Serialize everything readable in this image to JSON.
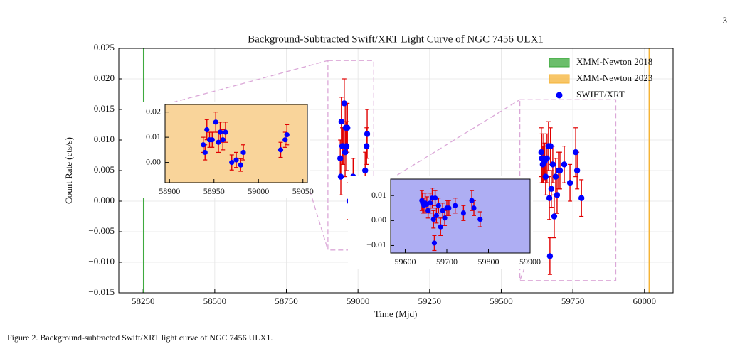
{
  "page_number": "3",
  "caption": "Figure 2. Background-subtracted Swift/XRT light curve of NGC 7456 ULX1.",
  "chart_data": {
    "type": "scatter",
    "title": "Background-Subtracted Swift/XRT Light Curve of NGC 7456 ULX1",
    "x_label": "Time (Mjd)",
    "y_label": "Count Rate (cts/s)",
    "xlim": [
      58165,
      60100
    ],
    "ylim": [
      -0.015,
      0.025
    ],
    "xticks": [
      58250,
      58500,
      58750,
      59000,
      59250,
      59500,
      59750,
      60000
    ],
    "yticks": [
      {
        "value": -0.015,
        "label": "−0.015"
      },
      {
        "value": -0.01,
        "label": "−0.010"
      },
      {
        "value": -0.005,
        "label": "−0.005"
      },
      {
        "value": 0,
        "label": "0.000"
      },
      0.005,
      {
        "value": 0.01,
        "label": "0.010"
      },
      0.015,
      {
        "value": 0.02,
        "label": "0.020"
      },
      0.025
    ],
    "grid": true,
    "legend": "upper right",
    "vlines": [
      {
        "name": "XMM-Newton 2018",
        "color": "#3aa83a",
        "x": 58252
      },
      {
        "name": "XMM-Newton 2023",
        "color": "#f5b335",
        "x": 60017
      }
    ],
    "series": [
      {
        "name": "SWIFT/XRT",
        "color": "#0000ff",
        "error_color": "#e00000",
        "x": [
          58938,
          58940,
          58942,
          58945,
          58948,
          58952,
          58955,
          58957,
          58960,
          58963,
          58970,
          58975,
          58980,
          58983,
          59025,
          59030,
          59032,
          59640,
          59642,
          59645,
          59648,
          59652,
          59655,
          59660,
          59665,
          59668,
          59670,
          59672,
          59675,
          59680,
          59685,
          59690,
          59695,
          59700,
          59705,
          59720,
          59740,
          59760,
          59765,
          59780
        ],
        "values": [
          0.007,
          0.004,
          0.013,
          0.009,
          0.009,
          0.016,
          0.008,
          0.012,
          0.009,
          0.012,
          0.0,
          0.001,
          -0.001,
          0.004,
          0.005,
          0.009,
          0.011,
          0.008,
          0.007,
          0.006,
          0.007,
          0.0065,
          0.004,
          0.007,
          0.009,
          0.0005,
          -0.009,
          0.009,
          0.002,
          0.006,
          -0.0025,
          0.004,
          0.001,
          0.005,
          0.005,
          0.006,
          0.003,
          0.008,
          0.005,
          0.0005
        ],
        "errors": [
          0.003,
          0.003,
          0.004,
          0.003,
          0.003,
          0.004,
          0.004,
          0.004,
          0.004,
          0.004,
          0.003,
          0.003,
          0.0025,
          0.003,
          0.003,
          0.003,
          0.004,
          0.004,
          0.004,
          0.003,
          0.004,
          0.003,
          0.003,
          0.004,
          0.004,
          0.0035,
          0.003,
          0.003,
          0.003,
          0.003,
          0.0035,
          0.003,
          0.003,
          0.003,
          0.003,
          0.003,
          0.003,
          0.004,
          0.003,
          0.003
        ]
      }
    ],
    "insets": [
      {
        "color": "#f9d49a",
        "xlim": [
          58895,
          59055
        ],
        "ylim": [
          -0.008,
          0.023
        ],
        "xticks": [
          58900,
          58950,
          59000,
          59050
        ],
        "yticks": [
          {
            "value": 0,
            "label": "0.00"
          },
          0.01,
          0.02
        ]
      },
      {
        "color": "#aeaef3",
        "xlim": [
          59565,
          59900
        ],
        "ylim": [
          -0.013,
          0.0166
        ],
        "xticks": [
          59600,
          59700,
          59800,
          59900
        ],
        "yticks": [
          {
            "value": -0.01,
            "label": "−0.01"
          },
          {
            "value": 0,
            "label": "0.00"
          },
          0.01
        ]
      }
    ]
  }
}
